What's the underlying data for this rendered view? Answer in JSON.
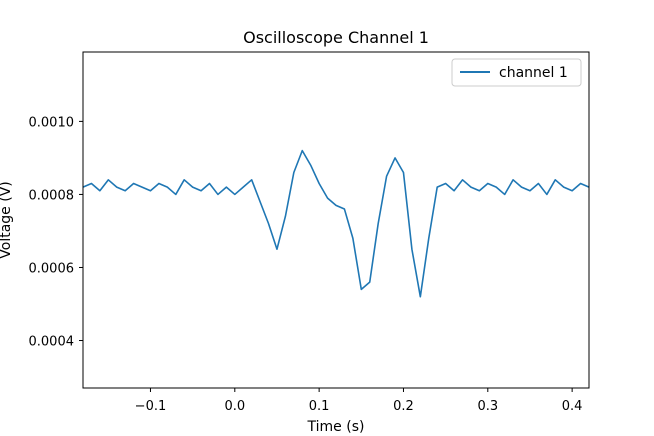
{
  "chart_data": {
    "type": "line",
    "title": "Oscilloscope Channel 1",
    "xlabel": "Time (s)",
    "ylabel": "Voltage (V)",
    "xlim": [
      -0.18,
      0.42
    ],
    "ylim": [
      0.00027,
      0.00119
    ],
    "x_ticks": [
      -0.1,
      0.0,
      0.1,
      0.2,
      0.3,
      0.4
    ],
    "x_tick_labels": [
      "−0.1",
      "0.0",
      "0.1",
      "0.2",
      "0.3",
      "0.4"
    ],
    "y_ticks": [
      0.0004,
      0.0006,
      0.0008,
      0.001
    ],
    "y_tick_labels": [
      "0.0004",
      "0.0006",
      "0.0008",
      "0.0010"
    ],
    "grid": false,
    "legend_position": "top-right",
    "colors": {
      "series": "#1f77b4"
    },
    "series": [
      {
        "name": "channel 1",
        "x": [
          -0.18,
          -0.17,
          -0.16,
          -0.15,
          -0.14,
          -0.13,
          -0.12,
          -0.11,
          -0.1,
          -0.09,
          -0.08,
          -0.07,
          -0.06,
          -0.05,
          -0.04,
          -0.03,
          -0.02,
          -0.01,
          0.0,
          0.01,
          0.02,
          0.03,
          0.04,
          0.05,
          0.06,
          0.07,
          0.08,
          0.09,
          0.1,
          0.11,
          0.12,
          0.13,
          0.14,
          0.15,
          0.16,
          0.17,
          0.18,
          0.19,
          0.2,
          0.21,
          0.22,
          0.23,
          0.24,
          0.25,
          0.26,
          0.27,
          0.28,
          0.29,
          0.3,
          0.31,
          0.32,
          0.33,
          0.34,
          0.35,
          0.36,
          0.37,
          0.38,
          0.39,
          0.4,
          0.41,
          0.42
        ],
        "y": [
          0.00082,
          0.00083,
          0.00081,
          0.00084,
          0.00082,
          0.00081,
          0.00083,
          0.00082,
          0.00081,
          0.00083,
          0.00082,
          0.0008,
          0.00084,
          0.00082,
          0.00081,
          0.00083,
          0.0008,
          0.00082,
          0.0008,
          0.00082,
          0.00084,
          0.00078,
          0.00072,
          0.00065,
          0.00074,
          0.00086,
          0.00092,
          0.00088,
          0.00083,
          0.00079,
          0.00077,
          0.00076,
          0.00068,
          0.00054,
          0.00056,
          0.00072,
          0.00085,
          0.0009,
          0.00086,
          0.00065,
          0.00052,
          0.00068,
          0.00082,
          0.00083,
          0.00081,
          0.00084,
          0.00082,
          0.00081,
          0.00083,
          0.00082,
          0.0008,
          0.00084,
          0.00082,
          0.00081,
          0.00083,
          0.0008,
          0.00084,
          0.00082,
          0.00081,
          0.00083,
          0.00082
        ]
      }
    ]
  }
}
